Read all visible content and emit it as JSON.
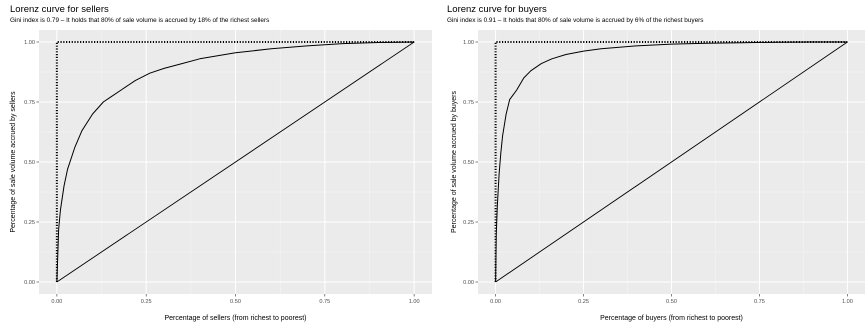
{
  "chart_data": [
    {
      "type": "line",
      "title": "Lorenz curve for sellers",
      "subtitle": "Gini index is 0.79 – It holds that 80% of sale volume is accrued by 18% of the richest sellers",
      "xlabel": "Percentage of sellers (from richest to poorest)",
      "ylabel": "Percentage of sale volume accrued by sellers",
      "xlim": [
        0,
        1
      ],
      "ylim": [
        0,
        1
      ],
      "xticks": [
        "0.00",
        "0.25",
        "0.50",
        "0.75",
        "1.00"
      ],
      "yticks": [
        "0.00",
        "0.25",
        "0.50",
        "0.75",
        "1.00"
      ],
      "grid": true,
      "series": [
        {
          "style": "solid",
          "x": [
            0,
            0.005,
            0.01,
            0.02,
            0.03,
            0.05,
            0.07,
            0.1,
            0.13,
            0.15,
            0.18,
            0.22,
            0.26,
            0.3,
            0.35,
            0.4,
            0.5,
            0.6,
            0.7,
            0.8,
            0.9,
            1.0
          ],
          "y": [
            0,
            0.22,
            0.3,
            0.4,
            0.47,
            0.56,
            0.63,
            0.7,
            0.75,
            0.77,
            0.8,
            0.84,
            0.87,
            0.89,
            0.91,
            0.93,
            0.955,
            0.972,
            0.984,
            0.993,
            0.998,
            1.0
          ]
        },
        {
          "style": "solid",
          "x": [
            0,
            1
          ],
          "y": [
            0,
            1
          ]
        },
        {
          "style": "dotted",
          "x": [
            0,
            0,
            1
          ],
          "y": [
            0,
            1,
            1
          ]
        }
      ]
    },
    {
      "type": "line",
      "title": "Lorenz curve for buyers",
      "subtitle": "Gini index is 0.91 – It holds that 80% of sale volume is accrued by 6% of the richest buyers",
      "xlabel": "Percentage of buyers (from richest to poorest)",
      "ylabel": "Percentage of sale volume accrued by buyers",
      "xlim": [
        0,
        1
      ],
      "ylim": [
        0,
        1
      ],
      "xticks": [
        "0.00",
        "0.25",
        "0.50",
        "0.75",
        "1.00"
      ],
      "yticks": [
        "0.00",
        "0.25",
        "0.50",
        "0.75",
        "1.00"
      ],
      "grid": true,
      "series": [
        {
          "style": "solid",
          "x": [
            0,
            0.002,
            0.005,
            0.01,
            0.015,
            0.02,
            0.03,
            0.04,
            0.05,
            0.06,
            0.08,
            0.1,
            0.13,
            0.16,
            0.2,
            0.25,
            0.3,
            0.4,
            0.5,
            0.6,
            0.7,
            0.8,
            0.9,
            1.0
          ],
          "y": [
            0,
            0.2,
            0.32,
            0.45,
            0.54,
            0.61,
            0.7,
            0.76,
            0.78,
            0.8,
            0.85,
            0.88,
            0.91,
            0.93,
            0.948,
            0.962,
            0.972,
            0.984,
            0.991,
            0.995,
            0.997,
            0.999,
            1.0,
            1.0
          ]
        },
        {
          "style": "solid",
          "x": [
            0,
            1
          ],
          "y": [
            0,
            1
          ]
        },
        {
          "style": "dotted",
          "x": [
            0,
            0,
            1
          ],
          "y": [
            0,
            1,
            1
          ]
        }
      ]
    }
  ],
  "colors": {
    "panel_background": "#ebebeb",
    "grid_major": "#ffffff",
    "grid_minor": "#f5f5f5",
    "line": "#000000",
    "tick_label": "#4d4d4d"
  }
}
